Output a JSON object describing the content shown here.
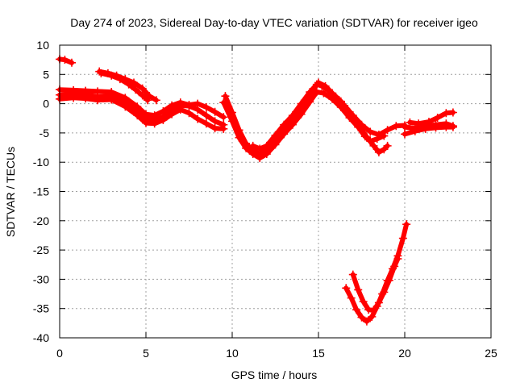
{
  "chart_data": {
    "type": "line",
    "title": "Day 274 of 2023, Sidereal Day-to-day VTEC variation (SDTVAR) for receiver igeo",
    "xlabel": "GPS time / hours",
    "ylabel": "SDTVAR / TECUs",
    "xlim": [
      0,
      25
    ],
    "ylim": [
      -40,
      10
    ],
    "xticks": [
      0,
      5,
      10,
      15,
      20,
      25
    ],
    "yticks": [
      10,
      5,
      0,
      -5,
      -10,
      -15,
      -20,
      -25,
      -30,
      -35,
      -40
    ],
    "grid": true,
    "series_color": "#ff0000",
    "series": [
      {
        "name": "track-1",
        "points": [
          [
            0.0,
            7.6
          ],
          [
            0.3,
            7.5
          ],
          [
            0.7,
            7.0
          ]
        ]
      },
      {
        "name": "track-2",
        "points": [
          [
            2.3,
            5.5
          ],
          [
            2.8,
            5.2
          ],
          [
            3.3,
            4.8
          ],
          [
            3.8,
            4.2
          ],
          [
            4.3,
            3.6
          ],
          [
            4.8,
            2.6
          ],
          [
            5.2,
            1.3
          ],
          [
            5.6,
            0.6
          ]
        ]
      },
      {
        "name": "track-3",
        "points": [
          [
            2.4,
            5.2
          ],
          [
            3.0,
            4.8
          ],
          [
            3.5,
            4.2
          ],
          [
            4.0,
            3.3
          ],
          [
            4.4,
            2.4
          ],
          [
            4.8,
            1.4
          ],
          [
            5.1,
            0.6
          ]
        ]
      },
      {
        "name": "track-4",
        "points": [
          [
            0.0,
            2.4
          ],
          [
            0.8,
            2.3
          ],
          [
            1.5,
            2.2
          ],
          [
            2.2,
            2.1
          ],
          [
            3.0,
            2.0
          ],
          [
            3.8,
            1.0
          ],
          [
            4.5,
            -0.5
          ],
          [
            5.0,
            -1.8
          ],
          [
            5.5,
            -2.0
          ],
          [
            6.0,
            -1.3
          ],
          [
            6.5,
            -0.3
          ],
          [
            7.0,
            0.2
          ],
          [
            7.5,
            -0.2
          ],
          [
            8.0,
            0.0
          ],
          [
            8.5,
            -0.6
          ],
          [
            9.0,
            -1.4
          ],
          [
            9.5,
            -2.3
          ]
        ]
      },
      {
        "name": "track-5",
        "points": [
          [
            0.0,
            1.5
          ],
          [
            0.8,
            1.7
          ],
          [
            1.5,
            1.5
          ],
          [
            2.2,
            1.2
          ],
          [
            3.0,
            1.3
          ],
          [
            3.8,
            0.2
          ],
          [
            4.5,
            -1.3
          ],
          [
            5.0,
            -2.5
          ],
          [
            5.5,
            -2.8
          ],
          [
            6.0,
            -2.2
          ],
          [
            6.5,
            -1.1
          ],
          [
            7.0,
            -0.3
          ],
          [
            7.5,
            -0.4
          ],
          [
            8.0,
            -1.0
          ],
          [
            8.5,
            -2.0
          ],
          [
            9.0,
            -3.0
          ],
          [
            9.5,
            -3.6
          ]
        ]
      },
      {
        "name": "track-6",
        "points": [
          [
            0.0,
            0.8
          ],
          [
            0.8,
            1.0
          ],
          [
            1.5,
            0.9
          ],
          [
            2.2,
            0.6
          ],
          [
            3.0,
            0.7
          ],
          [
            3.8,
            -0.5
          ],
          [
            4.5,
            -2.0
          ],
          [
            5.0,
            -3.3
          ],
          [
            5.5,
            -3.4
          ],
          [
            6.0,
            -2.8
          ],
          [
            6.5,
            -1.8
          ],
          [
            7.0,
            -1.0
          ],
          [
            7.5,
            -1.6
          ],
          [
            8.0,
            -2.6
          ],
          [
            8.5,
            -3.4
          ],
          [
            9.0,
            -4.2
          ],
          [
            9.5,
            -4.3
          ]
        ]
      },
      {
        "name": "track-7",
        "points": [
          [
            9.6,
            1.3
          ],
          [
            10.0,
            -1.5
          ],
          [
            10.4,
            -4.5
          ],
          [
            10.8,
            -6.8
          ],
          [
            11.2,
            -8.0
          ],
          [
            11.6,
            -8.6
          ],
          [
            12.0,
            -7.5
          ],
          [
            12.5,
            -5.8
          ],
          [
            13.0,
            -4.4
          ],
          [
            13.5,
            -2.9
          ],
          [
            14.0,
            -0.9
          ],
          [
            14.5,
            1.3
          ],
          [
            14.9,
            3.3
          ],
          [
            15.2,
            3.0
          ],
          [
            15.6,
            2.2
          ],
          [
            16.0,
            1.2
          ],
          [
            16.5,
            -0.3
          ],
          [
            17.0,
            -2.0
          ],
          [
            17.5,
            -3.6
          ],
          [
            18.0,
            -4.8
          ],
          [
            18.5,
            -5.3
          ],
          [
            19.0,
            -4.5
          ],
          [
            19.5,
            -3.8
          ],
          [
            20.0,
            -3.7
          ]
        ]
      },
      {
        "name": "track-8",
        "points": [
          [
            9.5,
            0.2
          ],
          [
            10.0,
            -3.0
          ],
          [
            10.4,
            -5.8
          ],
          [
            10.8,
            -7.6
          ],
          [
            11.2,
            -8.6
          ],
          [
            11.6,
            -9.3
          ],
          [
            12.0,
            -8.6
          ],
          [
            12.5,
            -7.0
          ],
          [
            13.0,
            -5.2
          ],
          [
            13.5,
            -3.6
          ],
          [
            14.0,
            -1.8
          ],
          [
            14.5,
            0.3
          ],
          [
            14.9,
            2.0
          ],
          [
            15.3,
            1.8
          ],
          [
            15.8,
            0.8
          ],
          [
            16.3,
            -0.6
          ],
          [
            16.8,
            -2.4
          ],
          [
            17.3,
            -4.0
          ],
          [
            17.7,
            -5.6
          ],
          [
            18.0,
            -6.4
          ],
          [
            18.4,
            -6.0
          ],
          [
            18.8,
            -5.5
          ]
        ]
      },
      {
        "name": "track-9",
        "points": [
          [
            11.2,
            -7.2
          ],
          [
            11.6,
            -7.7
          ],
          [
            12.0,
            -7.2
          ],
          [
            12.5,
            -5.4
          ],
          [
            13.0,
            -3.6
          ],
          [
            13.5,
            -2.0
          ],
          [
            14.0,
            0.0
          ],
          [
            14.5,
            2.0
          ],
          [
            15.0,
            3.6
          ],
          [
            15.4,
            3.0
          ],
          [
            15.8,
            1.8
          ],
          [
            16.3,
            0.4
          ],
          [
            16.8,
            -1.4
          ],
          [
            17.3,
            -3.6
          ],
          [
            17.8,
            -5.7
          ],
          [
            18.2,
            -7.2
          ],
          [
            18.5,
            -8.3
          ],
          [
            18.8,
            -7.8
          ],
          [
            19.0,
            -7.2
          ]
        ]
      },
      {
        "name": "track-10",
        "points": [
          [
            20.0,
            -4.0
          ],
          [
            20.6,
            -4.2
          ],
          [
            21.2,
            -3.8
          ],
          [
            21.8,
            -3.6
          ],
          [
            22.4,
            -3.4
          ],
          [
            22.8,
            -3.8
          ]
        ]
      },
      {
        "name": "track-11",
        "points": [
          [
            20.0,
            -5.2
          ],
          [
            20.6,
            -4.7
          ],
          [
            21.2,
            -4.3
          ],
          [
            21.8,
            -4.1
          ],
          [
            22.4,
            -4.0
          ],
          [
            22.8,
            -4.0
          ]
        ]
      },
      {
        "name": "track-12",
        "points": [
          [
            20.3,
            -3.2
          ],
          [
            20.8,
            -3.4
          ],
          [
            21.4,
            -3.1
          ],
          [
            21.9,
            -2.4
          ],
          [
            22.4,
            -1.6
          ],
          [
            22.8,
            -1.5
          ]
        ]
      },
      {
        "name": "track-13",
        "points": [
          [
            16.6,
            -31.5
          ],
          [
            16.9,
            -33.2
          ],
          [
            17.2,
            -35.2
          ],
          [
            17.5,
            -36.5
          ],
          [
            17.8,
            -37.2
          ],
          [
            18.1,
            -36.4
          ],
          [
            18.4,
            -34.6
          ],
          [
            18.7,
            -32.5
          ],
          [
            19.0,
            -30.2
          ],
          [
            19.3,
            -28.2
          ],
          [
            19.6,
            -26.0
          ],
          [
            19.9,
            -23.0
          ],
          [
            20.1,
            -20.6
          ]
        ]
      },
      {
        "name": "track-14",
        "points": [
          [
            17.0,
            -29.2
          ],
          [
            17.3,
            -31.8
          ],
          [
            17.6,
            -33.8
          ],
          [
            17.9,
            -35.2
          ],
          [
            18.2,
            -35.3
          ],
          [
            18.5,
            -34.0
          ],
          [
            18.8,
            -32.2
          ],
          [
            19.1,
            -30.2
          ],
          [
            19.4,
            -27.8
          ],
          [
            19.6,
            -26.5
          ]
        ]
      }
    ]
  }
}
